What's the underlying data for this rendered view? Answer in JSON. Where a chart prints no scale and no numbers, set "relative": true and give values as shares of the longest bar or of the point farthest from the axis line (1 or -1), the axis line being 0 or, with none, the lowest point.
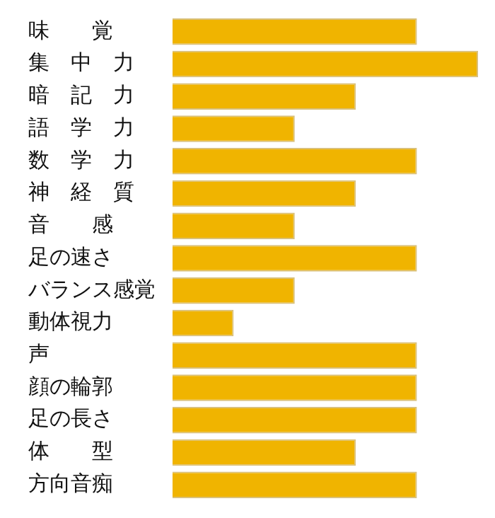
{
  "chart_data": {
    "type": "bar",
    "orientation": "horizontal",
    "relative": true,
    "color": "#f0b400",
    "categories": [
      "味　　覚",
      "集　中　力",
      "暗　記　力",
      "語　学　力",
      "数　学　力",
      "神　経　質",
      "音　　感",
      "足の速さ",
      "バランス感覚",
      "動体視力",
      "声",
      "顔の輪郭",
      "足の長さ",
      "体　　型",
      "方向音痴"
    ],
    "values": [
      0.8,
      1,
      0.6,
      0.4,
      0.8,
      0.6,
      0.4,
      0.8,
      0.4,
      0.2,
      0.8,
      0.8,
      0.8,
      0.6,
      0.8
    ],
    "legend": false
  }
}
